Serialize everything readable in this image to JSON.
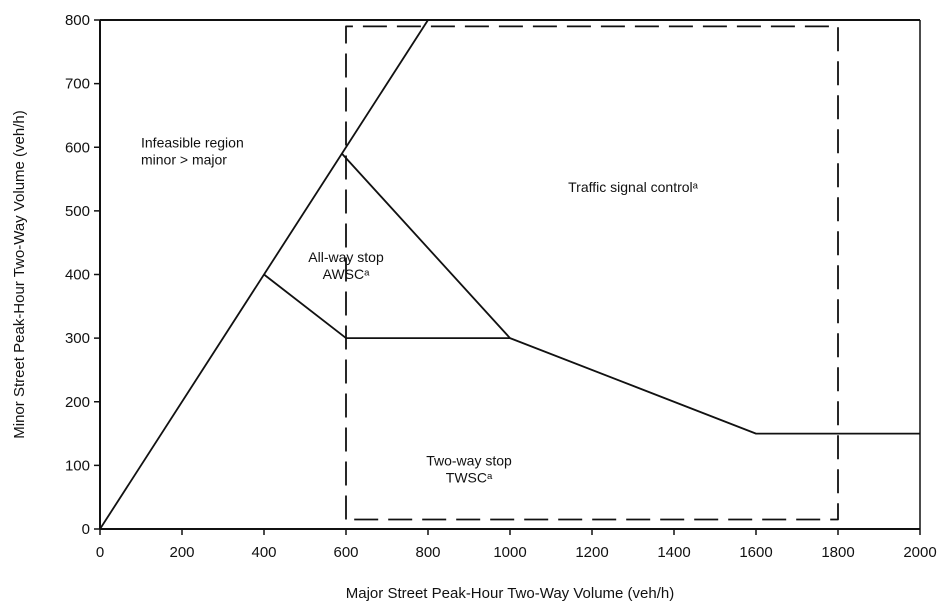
{
  "chart_data": {
    "type": "line",
    "title": "",
    "xlabel": "Major Street Peak-Hour Two-Way Volume (veh/h)",
    "ylabel": "Minor Street Peak-Hour Two-Way Volume (veh/h)",
    "xlim": [
      0,
      2000
    ],
    "ylim": [
      0,
      800
    ],
    "x_ticks": [
      0,
      200,
      400,
      600,
      800,
      1000,
      1200,
      1400,
      1600,
      1800,
      2000
    ],
    "y_ticks": [
      0,
      100,
      200,
      300,
      400,
      500,
      600,
      700,
      800
    ],
    "x_tick_labels": [
      "0",
      "200",
      "400",
      "600",
      "800",
      "1000",
      "1200",
      "1400",
      "1600",
      "1800",
      "2000"
    ],
    "y_tick_labels": [
      "0",
      "100",
      "200",
      "300",
      "400",
      "500",
      "600",
      "700",
      "800"
    ],
    "grid": false,
    "series": [
      {
        "style": "solid",
        "points": [
          [
            0,
            0
          ],
          [
            800,
            800
          ]
        ]
      },
      {
        "style": "solid",
        "points": [
          [
            400,
            400
          ],
          [
            600,
            300
          ],
          [
            1000,
            300
          ]
        ]
      },
      {
        "style": "solid",
        "points": [
          [
            590,
            590
          ],
          [
            1000,
            300
          ],
          [
            1600,
            150
          ],
          [
            2000,
            150
          ]
        ]
      },
      {
        "style": "dashed",
        "points": [
          [
            600,
            15
          ],
          [
            600,
            790
          ],
          [
            1800,
            790
          ],
          [
            1800,
            15
          ],
          [
            600,
            15
          ]
        ]
      }
    ],
    "annotations": [
      {
        "lines": [
          "Infeasible region",
          "minor > major"
        ],
        "x": 100,
        "y": 600
      },
      {
        "lines": [
          "All-way stop",
          "AWSCᵃ"
        ],
        "x": 600,
        "y": 420
      },
      {
        "lines": [
          "Traffic signal controlᵃ"
        ],
        "x": 1300,
        "y": 530
      },
      {
        "lines": [
          "Two-way stop",
          "TWSCᵃ"
        ],
        "x": 900,
        "y": 100
      }
    ]
  }
}
